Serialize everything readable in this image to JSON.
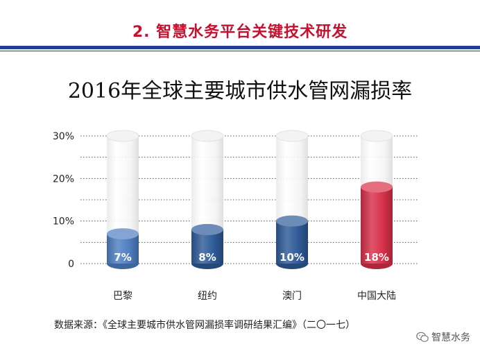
{
  "header": {
    "title": "2. 智慧水务平台关键技术研发",
    "title_color": "#c8102e",
    "rule_color": "#1f3f8f"
  },
  "chart_data": {
    "type": "bar",
    "title": "2016年全球主要城市供水管网漏损率",
    "categories": [
      "巴黎",
      "纽约",
      "澳门",
      "中国大陆"
    ],
    "values": [
      7,
      8,
      10,
      18
    ],
    "value_labels": [
      "7%",
      "8%",
      "10%",
      "18%"
    ],
    "ylim": [
      0,
      30
    ],
    "yticks": [
      0,
      10,
      20,
      30
    ],
    "ytick_labels": [
      "0",
      "10%",
      "20%",
      "30%"
    ],
    "grid": true,
    "bar_style": "cylinder",
    "colors": [
      "#4f7fc2",
      "#2f5b98",
      "#2f5b98",
      "#d8304a"
    ]
  },
  "footer": {
    "source": "数据来源：《全球主要城市供水管网漏损率调研结果汇编》（二〇一七）"
  },
  "watermark": {
    "text": "智慧水务",
    "icon": "wechat-icon"
  }
}
